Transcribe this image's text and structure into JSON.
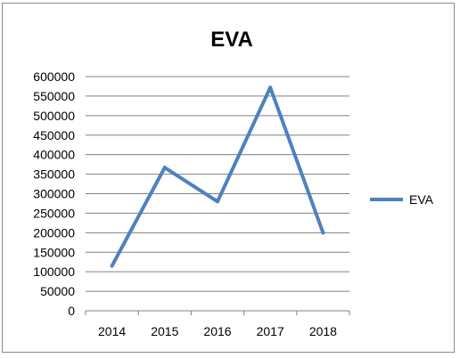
{
  "chart_data": {
    "type": "line",
    "title": "EVA",
    "xlabel": "",
    "ylabel": "",
    "categories": [
      "2014",
      "2015",
      "2016",
      "2017",
      "2018"
    ],
    "series": [
      {
        "name": "EVA",
        "values": [
          115000,
          367000,
          280000,
          572000,
          200000
        ],
        "color": "#4f81bd"
      }
    ],
    "ylim": [
      0,
      600000
    ],
    "yticks": [
      0,
      50000,
      100000,
      150000,
      200000,
      250000,
      300000,
      350000,
      400000,
      450000,
      500000,
      550000,
      600000
    ],
    "grid": true,
    "legend_position": "right"
  }
}
